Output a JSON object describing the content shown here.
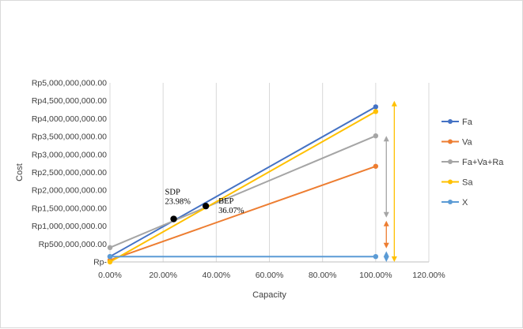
{
  "chart_data": {
    "type": "line",
    "xlabel": "Capacity",
    "ylabel": "Cost",
    "xlim": [
      0,
      1.2
    ],
    "ylim": [
      0,
      5000000000
    ],
    "x_ticks": [
      0,
      0.2,
      0.4,
      0.6,
      0.8,
      1.0,
      1.2
    ],
    "x_tick_labels": [
      "0.00%",
      "20.00%",
      "40.00%",
      "60.00%",
      "80.00%",
      "100.00%",
      "120.00%"
    ],
    "y_ticks": [
      0,
      500000000,
      1000000000,
      1500000000,
      2000000000,
      2500000000,
      3000000000,
      3500000000,
      4000000000,
      4500000000,
      5000000000
    ],
    "y_tick_labels": [
      "Rp-",
      "Rp500,000,000.00",
      "Rp1,000,000,000.00",
      "Rp1,500,000,000.00",
      "Rp2,000,000,000.00",
      "Rp2,500,000,000.00",
      "Rp3,000,000,000.00",
      "Rp3,500,000,000.00",
      "Rp4,000,000,000.00",
      "Rp4,500,000,000.00",
      "Rp5,000,000,000.00"
    ],
    "grid": "vertical",
    "legend_position": "right",
    "series": [
      {
        "name": "Fa",
        "color": "#4472c4",
        "x": [
          0,
          1.0
        ],
        "y": [
          150000000,
          4330000000
        ]
      },
      {
        "name": "Va",
        "color": "#ed7d31",
        "x": [
          0,
          1.0
        ],
        "y": [
          50000000,
          2670000000
        ]
      },
      {
        "name": "Fa+Va+Ra",
        "color": "#a5a5a5",
        "x": [
          0,
          1.0
        ],
        "y": [
          400000000,
          3520000000
        ]
      },
      {
        "name": "Sa",
        "color": "#ffc000",
        "x": [
          0,
          1.0
        ],
        "y": [
          0,
          4200000000
        ]
      },
      {
        "name": "X",
        "color": "#5b9bd5",
        "x": [
          0,
          1.0
        ],
        "y": [
          150000000,
          150000000
        ]
      }
    ],
    "annotations": [
      {
        "label": "SDP",
        "value_label": "23.98%",
        "x": 0.2398,
        "y": 1200000000
      },
      {
        "label": "BEP",
        "value_label": "36.07%",
        "x": 0.3607,
        "y": 1560000000
      }
    ],
    "arrows": [
      {
        "color": "#a5a5a5",
        "x": 1.04,
        "y_top": 3520000000,
        "y_bottom": 1240000000
      },
      {
        "color": "#ed7d31",
        "x": 1.04,
        "y_top": 1150000000,
        "y_bottom": 380000000
      },
      {
        "color": "#5b9bd5",
        "x": 1.04,
        "y_top": 300000000,
        "y_bottom": 0
      },
      {
        "color": "#ffc000",
        "x": 1.07,
        "y_top": 4500000000,
        "y_bottom": 0
      }
    ]
  }
}
